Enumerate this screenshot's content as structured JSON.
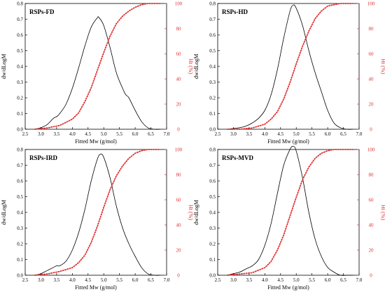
{
  "chart_data": [
    {
      "type": "line",
      "title": "RSPs-FD",
      "xlabel": "Fitted Mw (g/mol)",
      "ylabel": "dw/dLogM",
      "y2label": "Ht (%)",
      "xlim": [
        2.5,
        7.0
      ],
      "ylim": [
        0,
        0.8
      ],
      "y2lim": [
        0,
        100
      ],
      "xticks": [
        "2.5",
        "3.0",
        "3.5",
        "4.0",
        "4.5",
        "5.0",
        "5.5",
        "6.0",
        "6.5",
        "7.0"
      ],
      "yticks": [
        "0.0",
        "0.1",
        "0.2",
        "0.3",
        "0.4",
        "0.5",
        "0.6",
        "0.7",
        "0.8"
      ],
      "y2ticks": [
        "0",
        "20",
        "40",
        "60",
        "80",
        "100"
      ],
      "grid": false,
      "series": [
        {
          "axis": "left",
          "color": "#000000",
          "style": "solid",
          "x": [
            2.8,
            3.0,
            3.2,
            3.4,
            3.5,
            3.6,
            3.8,
            4.0,
            4.2,
            4.4,
            4.6,
            4.8,
            4.85,
            5.0,
            5.2,
            5.4,
            5.6,
            5.7,
            5.8,
            6.0,
            6.2,
            6.4,
            6.6,
            6.8
          ],
          "y": [
            0.0,
            0.01,
            0.03,
            0.07,
            0.08,
            0.1,
            0.16,
            0.26,
            0.39,
            0.53,
            0.65,
            0.71,
            0.71,
            0.66,
            0.52,
            0.36,
            0.26,
            0.22,
            0.2,
            0.12,
            0.05,
            0.01,
            0.0,
            0.0
          ]
        },
        {
          "axis": "right",
          "color": "#e03030",
          "style": "dotted",
          "x": [
            2.8,
            3.2,
            3.6,
            4.0,
            4.2,
            4.4,
            4.6,
            4.8,
            5.0,
            5.2,
            5.4,
            5.6,
            5.8,
            6.0,
            6.2,
            6.4,
            6.6,
            6.8
          ],
          "y": [
            0,
            1,
            3,
            8,
            13,
            22,
            33,
            47,
            61,
            74,
            84,
            90,
            94,
            97,
            99,
            100,
            100,
            100
          ]
        }
      ]
    },
    {
      "type": "line",
      "title": "RSPs-HD",
      "xlabel": "Fitted Mw (g/mol)",
      "ylabel": "dw/dLogM",
      "y2label": "Ht (%)",
      "xlim": [
        2.5,
        7.0
      ],
      "ylim": [
        0,
        0.8
      ],
      "y2lim": [
        0,
        100
      ],
      "xticks": [
        "2.5",
        "3.0",
        "3.5",
        "4.0",
        "4.5",
        "5.0",
        "5.5",
        "6.0",
        "6.5",
        "7.0"
      ],
      "yticks": [
        "0.0",
        "0.1",
        "0.2",
        "0.3",
        "0.4",
        "0.5",
        "0.6",
        "0.7",
        "0.8"
      ],
      "y2ticks": [
        "0",
        "20",
        "40",
        "60",
        "80",
        "100"
      ],
      "grid": false,
      "series": [
        {
          "axis": "left",
          "color": "#000000",
          "style": "solid",
          "x": [
            2.8,
            3.0,
            3.2,
            3.4,
            3.6,
            3.8,
            4.0,
            4.2,
            4.4,
            4.6,
            4.8,
            4.9,
            5.0,
            5.2,
            5.4,
            5.6,
            5.8,
            6.0,
            6.2,
            6.4,
            6.6,
            6.8
          ],
          "y": [
            0.0,
            0.005,
            0.01,
            0.02,
            0.04,
            0.07,
            0.12,
            0.22,
            0.38,
            0.58,
            0.75,
            0.79,
            0.77,
            0.66,
            0.5,
            0.36,
            0.24,
            0.12,
            0.04,
            0.01,
            0.0,
            0.0
          ]
        },
        {
          "axis": "right",
          "color": "#e03030",
          "style": "dotted",
          "x": [
            2.8,
            3.2,
            3.6,
            4.0,
            4.2,
            4.4,
            4.6,
            4.8,
            5.0,
            5.2,
            5.4,
            5.6,
            5.8,
            6.0,
            6.2,
            6.4,
            6.6,
            6.8
          ],
          "y": [
            0,
            0,
            1,
            4,
            8,
            14,
            24,
            37,
            52,
            66,
            78,
            88,
            94,
            98,
            99,
            100,
            100,
            100
          ]
        }
      ]
    },
    {
      "type": "line",
      "title": "RSPs-IRD",
      "xlabel": "Fitted Mw (g/mol)",
      "ylabel": "dw/dLogM",
      "y2label": "Ht (%)",
      "xlim": [
        2.5,
        7.0
      ],
      "ylim": [
        0,
        0.8
      ],
      "y2lim": [
        0,
        100
      ],
      "xticks": [
        "2.5",
        "3.0",
        "3.5",
        "4.0",
        "4.5",
        "5.0",
        "5.5",
        "6.0",
        "6.5",
        "7.0"
      ],
      "yticks": [
        "0.0",
        "0.1",
        "0.2",
        "0.3",
        "0.4",
        "0.5",
        "0.6",
        "0.7",
        "0.8"
      ],
      "y2ticks": [
        "0",
        "20",
        "40",
        "60",
        "80",
        "100"
      ],
      "grid": false,
      "series": [
        {
          "axis": "left",
          "color": "#000000",
          "style": "solid",
          "x": [
            2.8,
            3.0,
            3.2,
            3.4,
            3.5,
            3.6,
            3.8,
            4.0,
            4.2,
            4.4,
            4.6,
            4.8,
            4.9,
            5.0,
            5.2,
            5.4,
            5.6,
            5.8,
            6.0,
            6.2,
            6.4,
            6.6,
            6.8
          ],
          "y": [
            0.0,
            0.01,
            0.03,
            0.05,
            0.06,
            0.06,
            0.09,
            0.16,
            0.27,
            0.42,
            0.6,
            0.74,
            0.77,
            0.75,
            0.62,
            0.44,
            0.3,
            0.2,
            0.12,
            0.05,
            0.01,
            0.0,
            0.0
          ]
        },
        {
          "axis": "right",
          "color": "#e03030",
          "style": "dotted",
          "x": [
            2.8,
            3.2,
            3.6,
            4.0,
            4.2,
            4.4,
            4.6,
            4.8,
            5.0,
            5.2,
            5.4,
            5.6,
            5.8,
            6.0,
            6.2,
            6.4,
            6.6,
            6.8
          ],
          "y": [
            0,
            1,
            3,
            6,
            10,
            16,
            26,
            39,
            54,
            68,
            79,
            87,
            93,
            97,
            99,
            100,
            100,
            100
          ]
        }
      ]
    },
    {
      "type": "line",
      "title": "RSPs-MVD",
      "xlabel": "Fitted Mw (g/mol)",
      "ylabel": "dw/dLogM",
      "y2label": "Ht (%)",
      "xlim": [
        2.5,
        7.0
      ],
      "ylim": [
        0,
        0.8
      ],
      "y2lim": [
        0,
        100
      ],
      "xticks": [
        "2.5",
        "3.0",
        "3.5",
        "4.0",
        "4.5",
        "5.0",
        "5.5",
        "6.0",
        "6.5",
        "7.0"
      ],
      "yticks": [
        "0.0",
        "0.1",
        "0.2",
        "0.3",
        "0.4",
        "0.5",
        "0.6",
        "0.7",
        "0.8"
      ],
      "y2ticks": [
        "0",
        "20",
        "40",
        "60",
        "80",
        "100"
      ],
      "grid": false,
      "series": [
        {
          "axis": "left",
          "color": "#000000",
          "style": "solid",
          "x": [
            2.8,
            3.0,
            3.2,
            3.4,
            3.6,
            3.8,
            4.0,
            4.2,
            4.4,
            4.6,
            4.8,
            4.9,
            5.0,
            5.2,
            5.4,
            5.6,
            5.8,
            6.0,
            6.2,
            6.4,
            6.6,
            6.8
          ],
          "y": [
            0.0,
            0.01,
            0.02,
            0.04,
            0.06,
            0.1,
            0.19,
            0.33,
            0.52,
            0.7,
            0.8,
            0.82,
            0.79,
            0.62,
            0.4,
            0.23,
            0.12,
            0.05,
            0.02,
            0.0,
            0.0,
            0.0
          ]
        },
        {
          "axis": "right",
          "color": "#e03030",
          "style": "dotted",
          "x": [
            2.8,
            3.2,
            3.6,
            4.0,
            4.2,
            4.4,
            4.6,
            4.8,
            5.0,
            5.2,
            5.4,
            5.6,
            5.8,
            6.0,
            6.2,
            6.4,
            6.6,
            6.8
          ],
          "y": [
            0,
            1,
            2,
            6,
            11,
            20,
            32,
            47,
            62,
            76,
            86,
            93,
            97,
            99,
            100,
            100,
            100,
            100
          ]
        }
      ]
    }
  ]
}
